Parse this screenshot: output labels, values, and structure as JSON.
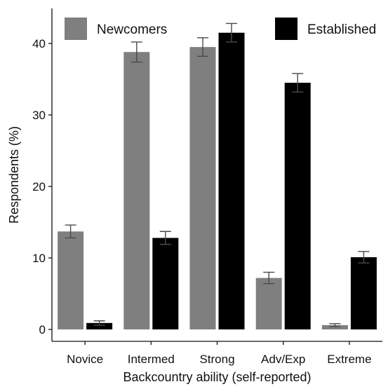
{
  "chart_data": {
    "type": "bar",
    "title": "",
    "xlabel": "Backcountry ability (self-reported)",
    "ylabel": "Respondents (%)",
    "categories": [
      "Novice",
      "Intermed",
      "Strong",
      "Adv/Exp",
      "Extreme"
    ],
    "ylim": [
      -1.5,
      44
    ],
    "yticks": [
      0,
      10,
      20,
      30,
      40
    ],
    "grid": false,
    "legend_position": "top",
    "series": [
      {
        "name": "Newcomers",
        "color": "#7f7f7f",
        "values": [
          13.7,
          38.8,
          39.5,
          7.2,
          0.6
        ],
        "error": [
          0.9,
          1.4,
          1.3,
          0.8,
          0.2
        ]
      },
      {
        "name": "Established",
        "color": "#000000",
        "values": [
          0.9,
          12.8,
          41.5,
          34.5,
          10.1
        ],
        "error": [
          0.3,
          0.9,
          1.3,
          1.3,
          0.8
        ]
      }
    ]
  }
}
